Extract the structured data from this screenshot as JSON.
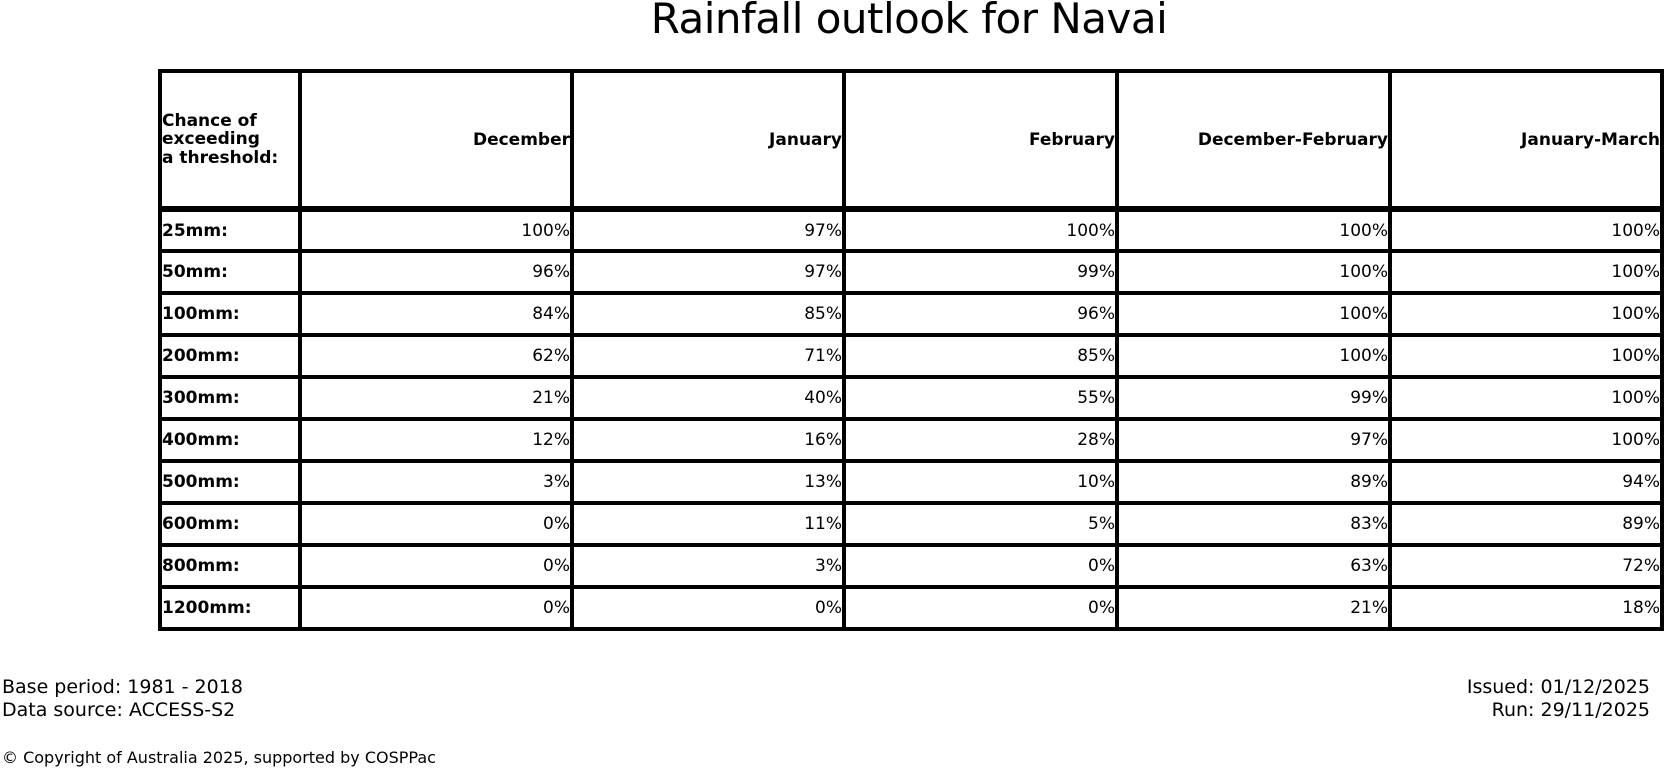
{
  "title": "Rainfall outlook for Navai",
  "table": {
    "corner_label": "Chance of\nexceeding\na threshold:",
    "columns": [
      "December",
      "January",
      "February",
      "December-February",
      "January-March"
    ],
    "rows": [
      {
        "label": "25mm:",
        "values": [
          "100%",
          "97%",
          "100%",
          "100%",
          "100%"
        ]
      },
      {
        "label": "50mm:",
        "values": [
          "96%",
          "97%",
          "99%",
          "100%",
          "100%"
        ]
      },
      {
        "label": "100mm:",
        "values": [
          "84%",
          "85%",
          "96%",
          "100%",
          "100%"
        ]
      },
      {
        "label": "200mm:",
        "values": [
          "62%",
          "71%",
          "85%",
          "100%",
          "100%"
        ]
      },
      {
        "label": "300mm:",
        "values": [
          "21%",
          "40%",
          "55%",
          "99%",
          "100%"
        ]
      },
      {
        "label": "400mm:",
        "values": [
          "12%",
          "16%",
          "28%",
          "97%",
          "100%"
        ]
      },
      {
        "label": "500mm:",
        "values": [
          "3%",
          "13%",
          "10%",
          "89%",
          "94%"
        ]
      },
      {
        "label": "600mm:",
        "values": [
          "0%",
          "11%",
          "5%",
          "83%",
          "89%"
        ]
      },
      {
        "label": "800mm:",
        "values": [
          "0%",
          "3%",
          "0%",
          "63%",
          "72%"
        ]
      },
      {
        "label": "1200mm:",
        "values": [
          "0%",
          "0%",
          "0%",
          "21%",
          "18%"
        ]
      }
    ]
  },
  "chart_data": {
    "type": "table",
    "title": "Rainfall outlook for Navai",
    "corner_header": "Chance of exceeding a threshold:",
    "columns": [
      "December",
      "January",
      "February",
      "December-February",
      "January-March"
    ],
    "row_thresholds_mm": [
      25,
      50,
      100,
      200,
      300,
      400,
      500,
      600,
      800,
      1200
    ],
    "values_percent": [
      [
        100,
        97,
        100,
        100,
        100
      ],
      [
        96,
        97,
        99,
        100,
        100
      ],
      [
        84,
        85,
        96,
        100,
        100
      ],
      [
        62,
        71,
        85,
        100,
        100
      ],
      [
        21,
        40,
        55,
        99,
        100
      ],
      [
        12,
        16,
        28,
        97,
        100
      ],
      [
        3,
        13,
        10,
        89,
        94
      ],
      [
        0,
        11,
        5,
        83,
        89
      ],
      [
        0,
        3,
        0,
        63,
        72
      ],
      [
        0,
        0,
        0,
        21,
        18
      ]
    ]
  },
  "footer": {
    "base_period": "Base period: 1981 - 2018",
    "data_source": "Data source: ACCESS-S2",
    "issued": "Issued: 01/12/2025",
    "run": "Run: 29/11/2025",
    "copyright": "© Copyright of Australia 2025, supported by COSPPac"
  },
  "colors": {
    "text": "#000000",
    "background": "#ffffff",
    "border": "#000000"
  }
}
